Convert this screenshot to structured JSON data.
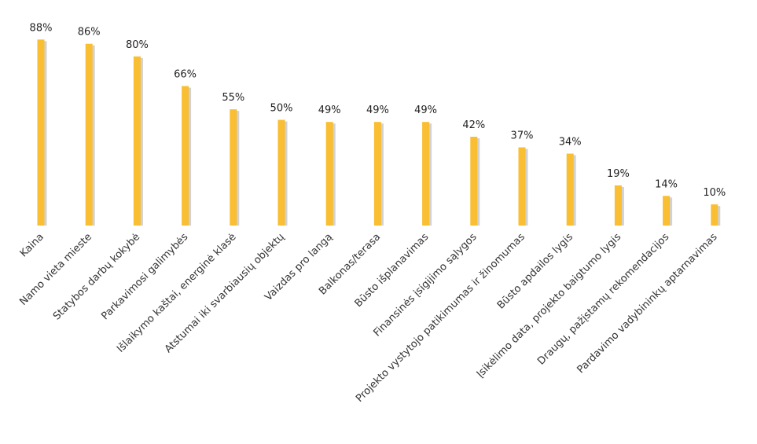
{
  "chart_data": {
    "type": "bar",
    "categories": [
      "Kaina",
      "Namo vieta mieste",
      "Statybos darbų kokybė",
      "Parkavimosi galimybės",
      "Išlaikymo kaštai, energinė klasė",
      "Atstumai iki svarbiausių objektų",
      "Vaizdas pro langą",
      "Balkonas/terasa",
      "Būsto išplanavimas",
      "Finansinės įsigijimo sąlygos",
      "Projekto vystytojo patikimumas ir žinomumas",
      "Būsto apdailos lygis",
      "Įsikėlimo data, projekto baigtumo lygis",
      "Draugų, pažįstamų rekomendacijos",
      "Pardavimo vadybininkų aptarnavimas"
    ],
    "values": [
      88,
      86,
      80,
      66,
      55,
      50,
      49,
      49,
      49,
      42,
      37,
      34,
      19,
      14,
      10
    ],
    "value_labels": [
      "88%",
      "86%",
      "80%",
      "66%",
      "55%",
      "50%",
      "49%",
      "49%",
      "49%",
      "42%",
      "37%",
      "34%",
      "19%",
      "14%",
      "10%"
    ],
    "ylim": [
      0,
      100
    ],
    "grid": false,
    "legend": "none",
    "bar_color": "#F9BE31",
    "shadow_color": "#D2D2D2"
  }
}
